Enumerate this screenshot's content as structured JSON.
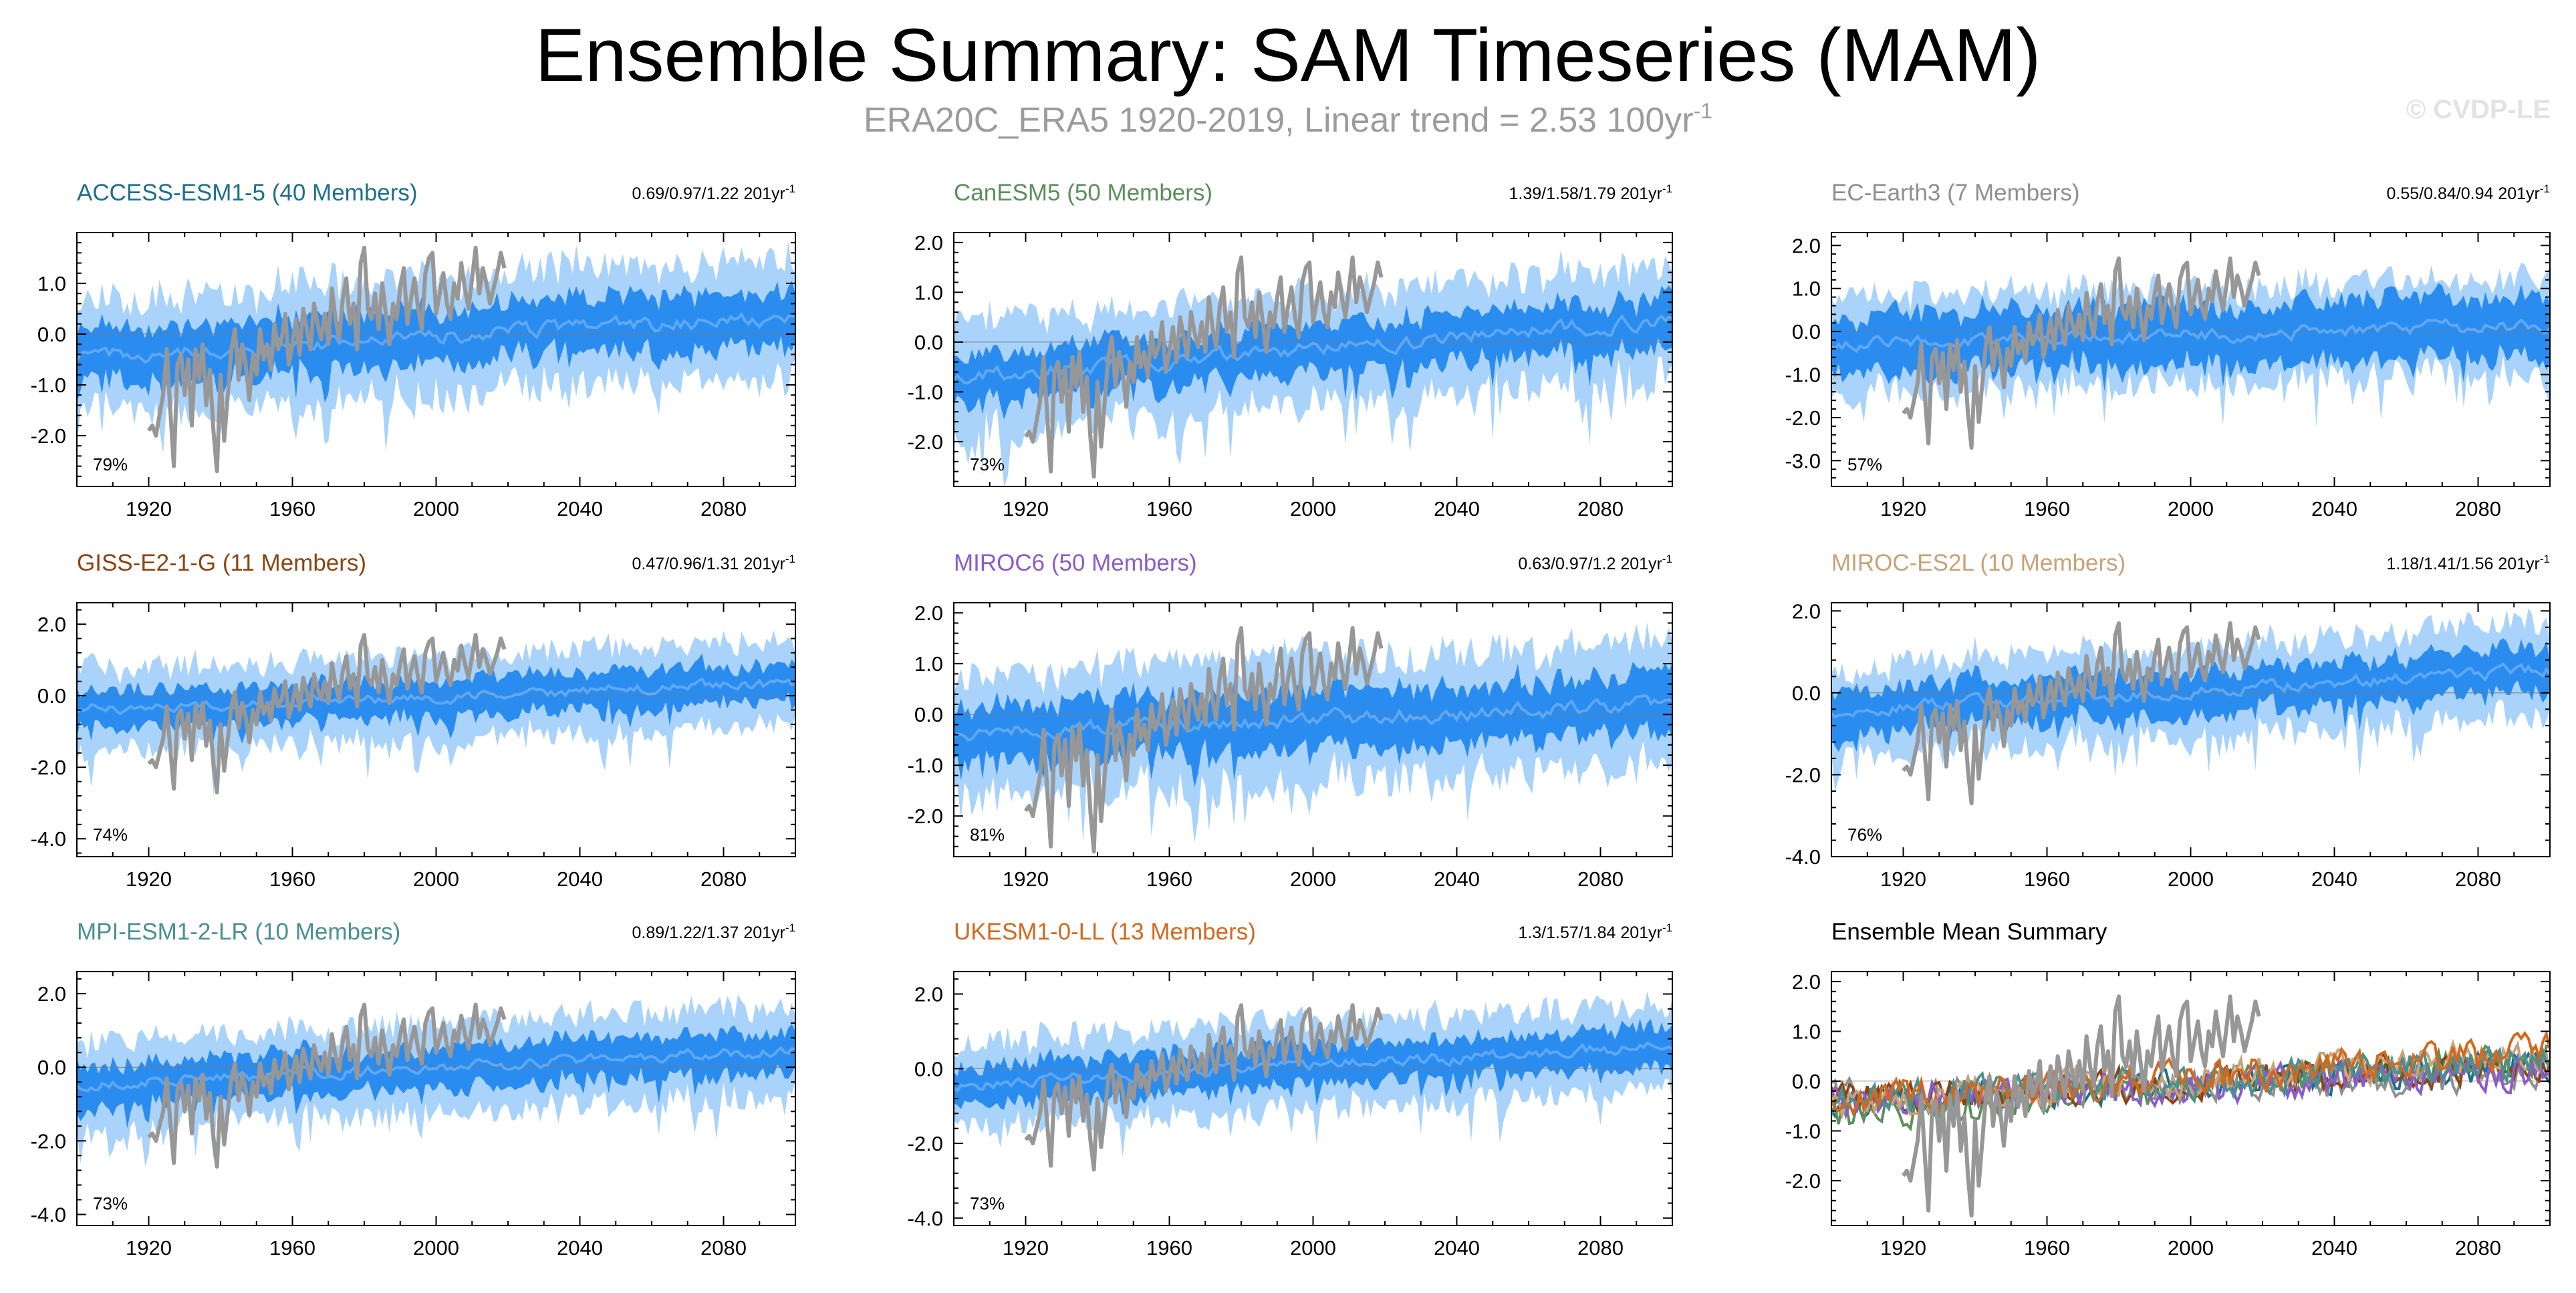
{
  "header": {
    "title": "Ensemble Summary: SAM Timeseries (MAM)",
    "subtitle_main": "ERA20C_ERA5 1920-2019, Linear trend = 2.53 100yr",
    "subtitle_exp": "-1",
    "watermark": "© CVDP-LE"
  },
  "colors": {
    "spread_outer": "#a9d3fa",
    "spread_inner": "#2b8cf0",
    "ensemble_mean": "#5fa8f2",
    "observations": "#979797",
    "axis": "#000000"
  },
  "chart_data": [
    {
      "type": "area",
      "title": "ACCESS-ESM1-5 (40 Members)",
      "title_color": "#1f6f8b",
      "stats": "0.69/0.97/1.22 201yr",
      "stats_exp": "-1",
      "percent": "79%",
      "x_tick_labels": [
        "1920",
        "1960",
        "2000",
        "2040",
        "2080"
      ],
      "x_ticks": [
        1920,
        1960,
        2000,
        2040,
        2080
      ],
      "xlim": [
        1900,
        2100
      ],
      "y_tick_labels": [
        "1.0",
        "0.0",
        "-1.0",
        "-2.0"
      ],
      "y_ticks": [
        1.0,
        0.0,
        -1.0,
        -2.0
      ],
      "ylim": [
        -3.0,
        2.0
      ],
      "ensemble_mean_trend": [
        -0.45,
        0.35
      ],
      "inner_halfwidth": 0.55,
      "outer_halfwidth": 1.15,
      "seed": 11
    },
    {
      "type": "area",
      "title": "CanESM5 (50 Members)",
      "title_color": "#5c8f5c",
      "stats": "1.39/1.58/1.79 201yr",
      "stats_exp": "-1",
      "percent": "73%",
      "x_tick_labels": [
        "1920",
        "1960",
        "2000",
        "2040",
        "2080"
      ],
      "x_ticks": [
        1920,
        1960,
        2000,
        2040,
        2080
      ],
      "xlim": [
        1900,
        2100
      ],
      "y_tick_labels": [
        "2.0",
        "1.0",
        "0.0",
        "-1.0",
        "-2.0"
      ],
      "y_ticks": [
        2.0,
        1.0,
        0.0,
        -1.0,
        -2.0
      ],
      "ylim": [
        -2.9,
        2.2
      ],
      "ensemble_mean_trend": [
        -0.7,
        0.45
      ],
      "inner_halfwidth": 0.5,
      "outer_halfwidth": 1.1,
      "seed": 23
    },
    {
      "type": "area",
      "title": "EC-Earth3 (7 Members)",
      "title_color": "#8f8f8f",
      "stats": "0.55/0.84/0.94 201yr",
      "stats_exp": "-1",
      "percent": "57%",
      "x_tick_labels": [
        "1920",
        "1960",
        "2000",
        "2040",
        "2080"
      ],
      "x_ticks": [
        1920,
        1960,
        2000,
        2040,
        2080
      ],
      "xlim": [
        1900,
        2100
      ],
      "y_tick_labels": [
        "2.0",
        "1.0",
        "0.0",
        "-1.0",
        "-2.0",
        "-3.0"
      ],
      "y_ticks": [
        2.0,
        1.0,
        0.0,
        -1.0,
        -2.0,
        -3.0
      ],
      "ylim": [
        -3.6,
        2.3
      ],
      "ensemble_mean_trend": [
        -0.3,
        0.15
      ],
      "inner_halfwidth": 0.7,
      "outer_halfwidth": 1.1,
      "seed": 37
    },
    {
      "type": "area",
      "title": "GISS-E2-1-G (11 Members)",
      "title_color": "#8b4513",
      "stats": "0.47/0.96/1.31 201yr",
      "stats_exp": "-1",
      "percent": "74%",
      "x_tick_labels": [
        "1920",
        "1960",
        "2000",
        "2040",
        "2080"
      ],
      "x_ticks": [
        1920,
        1960,
        2000,
        2040,
        2080
      ],
      "xlim": [
        1900,
        2100
      ],
      "y_tick_labels": [
        "2.0",
        "0.0",
        "-2.0",
        "-4.0"
      ],
      "y_ticks": [
        2.0,
        0.0,
        -2.0,
        -4.0
      ],
      "ylim": [
        -4.5,
        2.6
      ],
      "ensemble_mean_trend": [
        -0.4,
        0.35
      ],
      "inner_halfwidth": 0.55,
      "outer_halfwidth": 1.15,
      "seed": 41
    },
    {
      "type": "area",
      "title": "MIROC6 (50 Members)",
      "title_color": "#8a5cc7",
      "stats": "0.63/0.97/1.2 201yr",
      "stats_exp": "-1",
      "percent": "81%",
      "x_tick_labels": [
        "1920",
        "1960",
        "2000",
        "2040",
        "2080"
      ],
      "x_ticks": [
        1920,
        1960,
        2000,
        2040,
        2080
      ],
      "xlim": [
        1900,
        2100
      ],
      "y_tick_labels": [
        "2.0",
        "1.0",
        "0.0",
        "-1.0",
        "-2.0"
      ],
      "y_ticks": [
        2.0,
        1.0,
        0.0,
        -1.0,
        -2.0
      ],
      "ylim": [
        -2.8,
        2.2
      ],
      "ensemble_mean_trend": [
        -0.4,
        0.2
      ],
      "inner_halfwidth": 0.6,
      "outer_halfwidth": 1.2,
      "seed": 53
    },
    {
      "type": "area",
      "title": "MIROC-ES2L (10 Members)",
      "title_color": "#c8a27a",
      "stats": "1.18/1.41/1.56 201yr",
      "stats_exp": "-1",
      "percent": "76%",
      "x_tick_labels": [
        "1920",
        "1960",
        "2000",
        "2040",
        "2080"
      ],
      "x_ticks": [
        1920,
        1960,
        2000,
        2040,
        2080
      ],
      "xlim": [
        1900,
        2100
      ],
      "y_tick_labels": [
        "2.0",
        "0.0",
        "-2.0",
        "-4.0"
      ],
      "y_ticks": [
        2.0,
        0.0,
        -2.0,
        -4.0
      ],
      "ylim": [
        -4.0,
        2.2
      ],
      "ensemble_mean_trend": [
        -0.45,
        0.55
      ],
      "inner_halfwidth": 0.55,
      "outer_halfwidth": 1.1,
      "seed": 67
    },
    {
      "type": "area",
      "title": "MPI-ESM1-2-LR (10 Members)",
      "title_color": "#4a9090",
      "stats": "0.89/1.22/1.37 201yr",
      "stats_exp": "-1",
      "percent": "73%",
      "x_tick_labels": [
        "1920",
        "1960",
        "2000",
        "2040",
        "2080"
      ],
      "x_ticks": [
        1920,
        1960,
        2000,
        2040,
        2080
      ],
      "xlim": [
        1900,
        2100
      ],
      "y_tick_labels": [
        "2.0",
        "0.0",
        "-2.0",
        "-4.0"
      ],
      "y_ticks": [
        2.0,
        0.0,
        -2.0,
        -4.0
      ],
      "ylim": [
        -4.3,
        2.6
      ],
      "ensemble_mean_trend": [
        -0.45,
        0.45
      ],
      "inner_halfwidth": 0.6,
      "outer_halfwidth": 1.2,
      "seed": 79
    },
    {
      "type": "area",
      "title": "UKESM1-0-LL (13 Members)",
      "title_color": "#d2691e",
      "stats": "1.3/1.57/1.84 201yr",
      "stats_exp": "-1",
      "percent": "73%",
      "x_tick_labels": [
        "1920",
        "1960",
        "2000",
        "2040",
        "2080"
      ],
      "x_ticks": [
        1920,
        1960,
        2000,
        2040,
        2080
      ],
      "xlim": [
        1900,
        2100
      ],
      "y_tick_labels": [
        "2.0",
        "0.0",
        "-2.0",
        "-4.0"
      ],
      "y_ticks": [
        2.0,
        0.0,
        -2.0,
        -4.0
      ],
      "ylim": [
        -4.2,
        2.6
      ],
      "ensemble_mean_trend": [
        -0.45,
        0.6
      ],
      "inner_halfwidth": 0.55,
      "outer_halfwidth": 1.15,
      "seed": 97
    },
    {
      "type": "line",
      "title": "Ensemble Mean Summary",
      "title_color": "#000000",
      "stats": "",
      "stats_exp": "",
      "percent": "",
      "x_tick_labels": [
        "1920",
        "1960",
        "2000",
        "2040",
        "2080"
      ],
      "x_ticks": [
        1920,
        1960,
        2000,
        2040,
        2080
      ],
      "xlim": [
        1900,
        2100
      ],
      "y_tick_labels": [
        "2.0",
        "1.0",
        "0.0",
        "-1.0",
        "-2.0"
      ],
      "y_ticks": [
        2.0,
        1.0,
        0.0,
        -1.0,
        -2.0
      ],
      "ylim": [
        -2.9,
        2.2
      ],
      "series_colors": [
        "#1f6f8b",
        "#5c8f5c",
        "#8f8f8f",
        "#8b4513",
        "#8a5cc7",
        "#c8a27a",
        "#4a9090",
        "#d2691e"
      ],
      "series_trends": [
        [
          -0.45,
          0.35
        ],
        [
          -0.7,
          0.45
        ],
        [
          -0.3,
          0.15
        ],
        [
          -0.4,
          0.35
        ],
        [
          -0.4,
          0.2
        ],
        [
          -0.45,
          0.55
        ],
        [
          -0.45,
          0.45
        ],
        [
          -0.45,
          0.6
        ]
      ],
      "seed": 131
    }
  ],
  "observations": {
    "name": "ERA20C_ERA5",
    "years": [
      1920,
      2019
    ],
    "values": [
      -1.9,
      -1.8,
      -2.0,
      -1.6,
      -1.2,
      -0.3,
      -1.5,
      -2.6,
      -0.6,
      -0.4,
      -1.2,
      -0.5,
      -1.8,
      -0.3,
      -0.9,
      -0.2,
      -1.4,
      -0.7,
      -1.9,
      -2.7,
      -0.8,
      -2.1,
      -1.2,
      -0.3,
      0.1,
      -0.9,
      -0.2,
      -0.6,
      -1.3,
      -0.4,
      -0.8,
      0.1,
      -0.5,
      -0.2,
      -0.7,
      0.2,
      -0.3,
      -0.1,
      0.4,
      -0.6,
      -0.2,
      0.3,
      -0.4,
      0.5,
      0.1,
      -0.3,
      0.6,
      0.2,
      -0.1,
      0.4,
      -0.2,
      0.9,
      0.3,
      -0.1,
      0.7,
      1.1,
      0.2,
      0.6,
      -0.3,
      1.4,
      1.7,
      0.5,
      0.3,
      0.8,
      0.1,
      1.0,
      0.4,
      -0.2,
      0.6,
      0.3,
      0.9,
      1.3,
      0.2,
      0.7,
      1.1,
      0.5,
      0.1,
      1.2,
      1.5,
      1.6,
      0.4,
      0.8,
      1.2,
      0.6,
      0.3,
      1.0,
      0.7,
      1.4,
      0.9,
      0.5,
      1.1,
      1.7,
      0.8,
      1.3,
      1.0,
      0.6,
      0.9,
      1.2,
      1.6,
      1.3
    ]
  }
}
